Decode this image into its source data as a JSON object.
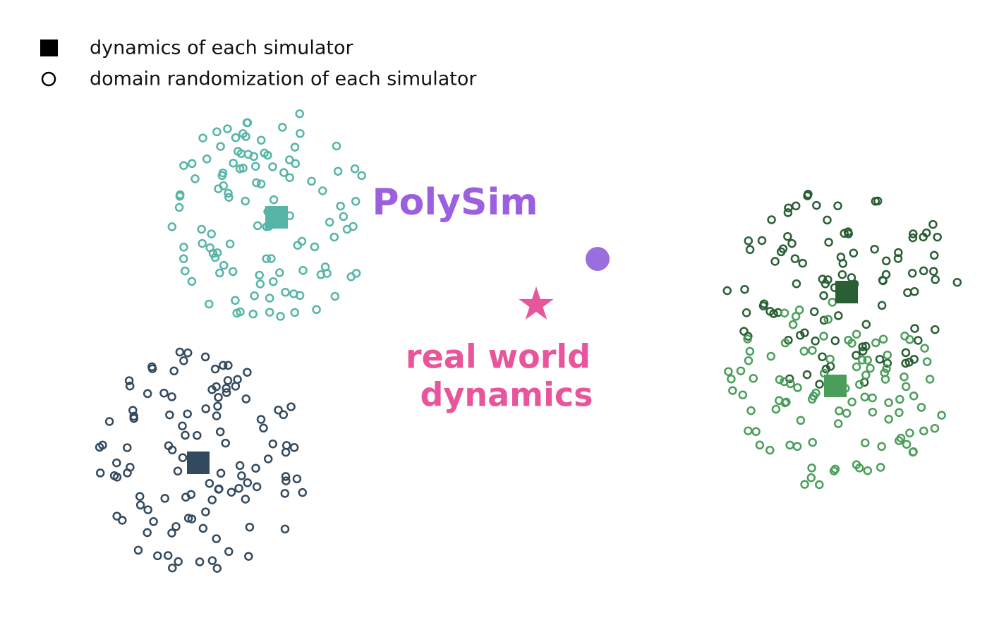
{
  "legend": [
    {
      "label": "dynamics of each simulator"
    },
    {
      "label": "domain randomization of each simulator"
    }
  ],
  "labels": {
    "polysim": "PolySim",
    "real_world": [
      "real world",
      "dynamics"
    ]
  }
}
